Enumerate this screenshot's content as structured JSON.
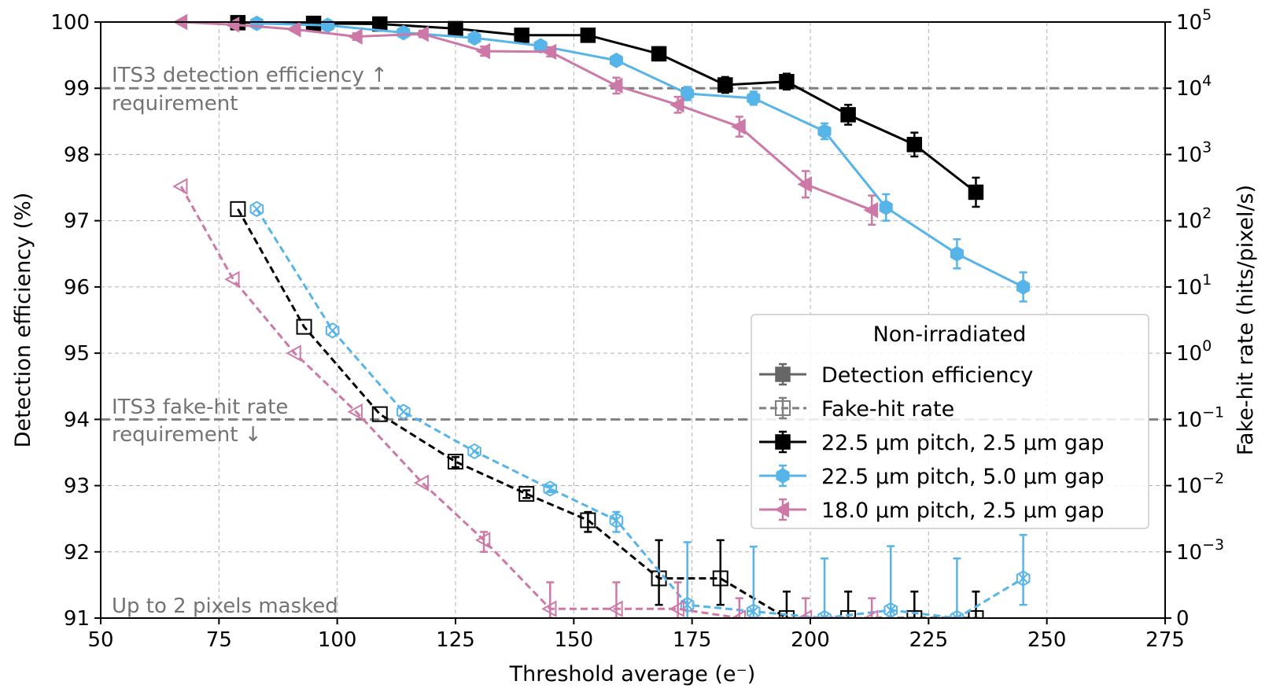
{
  "chart_data": {
    "type": "line",
    "xlabel": "Threshold average (e⁻)",
    "ylabel_left": "Detection efficiency (%)",
    "ylabel_right": "Fake-hit rate (hits/pixel/s)",
    "xlim": [
      50,
      275
    ],
    "x_ticks": [
      50,
      75,
      100,
      125,
      150,
      175,
      200,
      225,
      250,
      275
    ],
    "y_left_lim": [
      91,
      100
    ],
    "y_left_ticks": [
      91,
      92,
      93,
      94,
      95,
      96,
      97,
      98,
      99,
      100
    ],
    "y_right_scale": "symlog",
    "y_right_ticks": [
      {
        "base": "0",
        "exp": ""
      },
      {
        "base": "10",
        "exp": "−3"
      },
      {
        "base": "10",
        "exp": "−2"
      },
      {
        "base": "10",
        "exp": "−1"
      },
      {
        "base": "10",
        "exp": "0"
      },
      {
        "base": "10",
        "exp": "1"
      },
      {
        "base": "10",
        "exp": "2"
      },
      {
        "base": "10",
        "exp": "3"
      },
      {
        "base": "10",
        "exp": "4"
      },
      {
        "base": "10",
        "exp": "5"
      }
    ],
    "grid": true,
    "annotations": {
      "efficiency_req_line1": "ITS3 detection efficiency ↑",
      "efficiency_req_line2": "requirement",
      "fakehit_req_line1": "ITS3 fake-hit rate",
      "fakehit_req_line2": "requirement ↓",
      "masked_note": "Up to 2 pixels masked"
    },
    "requirement_levels": {
      "efficiency_percent": 99,
      "fake_hit_rate": 0.1
    },
    "legend": {
      "title": "Non-irradiated",
      "location": "center-right",
      "style_entries": [
        "Detection efficiency",
        "Fake-hit rate"
      ],
      "series_entries": [
        "22.5 µm pitch, 2.5 µm gap",
        "22.5 µm pitch, 5.0 µm gap",
        "18.0 µm pitch, 2.5 µm gap"
      ]
    },
    "series": [
      {
        "name": "22.5 µm pitch, 2.5 µm gap",
        "color": "#000000",
        "marker": "square",
        "efficiency": {
          "x": [
            79,
            95,
            109,
            125,
            139,
            153,
            168,
            182,
            195,
            208,
            222,
            235
          ],
          "y": [
            99.99,
            99.98,
            99.97,
            99.9,
            99.8,
            99.8,
            99.52,
            99.05,
            99.1,
            98.6,
            98.15,
            97.43
          ],
          "err": [
            0.02,
            0.02,
            0.03,
            0.05,
            0.05,
            0.05,
            0.1,
            0.12,
            0.12,
            0.15,
            0.18,
            0.22
          ]
        },
        "fake_hit_rate": {
          "x": [
            79,
            93,
            109,
            125,
            140,
            153,
            168,
            181,
            195,
            208,
            222,
            235
          ],
          "y": [
            150,
            2.5,
            0.12,
            0.023,
            0.0075,
            0.003,
            0.0006,
            0.0006,
            0,
            0,
            0,
            0
          ],
          "err_low": [
            0,
            0,
            0,
            0.004,
            0.001,
            0.001,
            0.0004,
            0.0004,
            0,
            0,
            0,
            0
          ],
          "err_high": [
            0,
            0,
            0,
            0.004,
            0.001,
            0.001,
            0.0009,
            0.0009,
            0.0004,
            0.0004,
            0.0004,
            0.0004
          ]
        }
      },
      {
        "name": "22.5 µm pitch, 5.0 µm gap",
        "color": "#56B4E9",
        "marker": "hexagon",
        "efficiency": {
          "x": [
            83,
            98,
            114,
            129,
            143,
            159,
            174,
            188,
            203,
            216,
            231,
            245
          ],
          "y": [
            99.98,
            99.95,
            99.84,
            99.76,
            99.64,
            99.42,
            98.92,
            98.85,
            98.35,
            97.2,
            96.5,
            96.0
          ],
          "err": [
            0.02,
            0.03,
            0.04,
            0.05,
            0.05,
            0.07,
            0.1,
            0.1,
            0.12,
            0.2,
            0.22,
            0.22
          ]
        },
        "fake_hit_rate": {
          "x": [
            83,
            99,
            114,
            129,
            145,
            159,
            174,
            188,
            203,
            217,
            231,
            245
          ],
          "y": [
            150,
            2.2,
            0.13,
            0.033,
            0.009,
            0.003,
            0.0002,
            0.0001,
            0,
            0.00012,
            0,
            0.0006
          ],
          "err_low": [
            0,
            0,
            0,
            0,
            0.001,
            0.001,
            0.0002,
            0.0001,
            0,
            0.00012,
            0,
            0.0004
          ],
          "err_high": [
            0,
            0,
            0,
            0,
            0.001,
            0.001,
            0.0012,
            0.0011,
            0.0009,
            0.0011,
            0.0009,
            0.0012
          ]
        }
      },
      {
        "name": "18.0 µm pitch, 2.5 µm gap",
        "color": "#CC79A7",
        "marker": "triangle-left",
        "efficiency": {
          "x": [
            67,
            78,
            91,
            104,
            118,
            131,
            145,
            159,
            172,
            185,
            199,
            213
          ],
          "y": [
            100.0,
            99.96,
            99.89,
            99.78,
            99.82,
            99.56,
            99.55,
            99.04,
            98.75,
            98.42,
            97.55,
            97.16
          ],
          "err": [
            0.01,
            0.02,
            0.03,
            0.05,
            0.05,
            0.07,
            0.07,
            0.12,
            0.12,
            0.15,
            0.2,
            0.22
          ]
        },
        "fake_hit_rate": {
          "x": [
            67,
            78,
            91,
            104,
            118,
            131,
            145,
            159,
            172,
            185,
            199,
            213
          ],
          "y": [
            330,
            13,
            1.0,
            0.13,
            0.011,
            0.0015,
            0.00014,
            0.00014,
            0.00014,
            0,
            0,
            0
          ],
          "err_low": [
            0,
            0,
            0,
            0,
            0,
            0.0005,
            0.00014,
            0.00014,
            0.00014,
            0,
            0,
            0
          ],
          "err_high": [
            0,
            0,
            0,
            0,
            0,
            0.0005,
            0.0004,
            0.0004,
            0.0004,
            0.0003,
            0.0003,
            0.0003
          ]
        }
      }
    ]
  }
}
